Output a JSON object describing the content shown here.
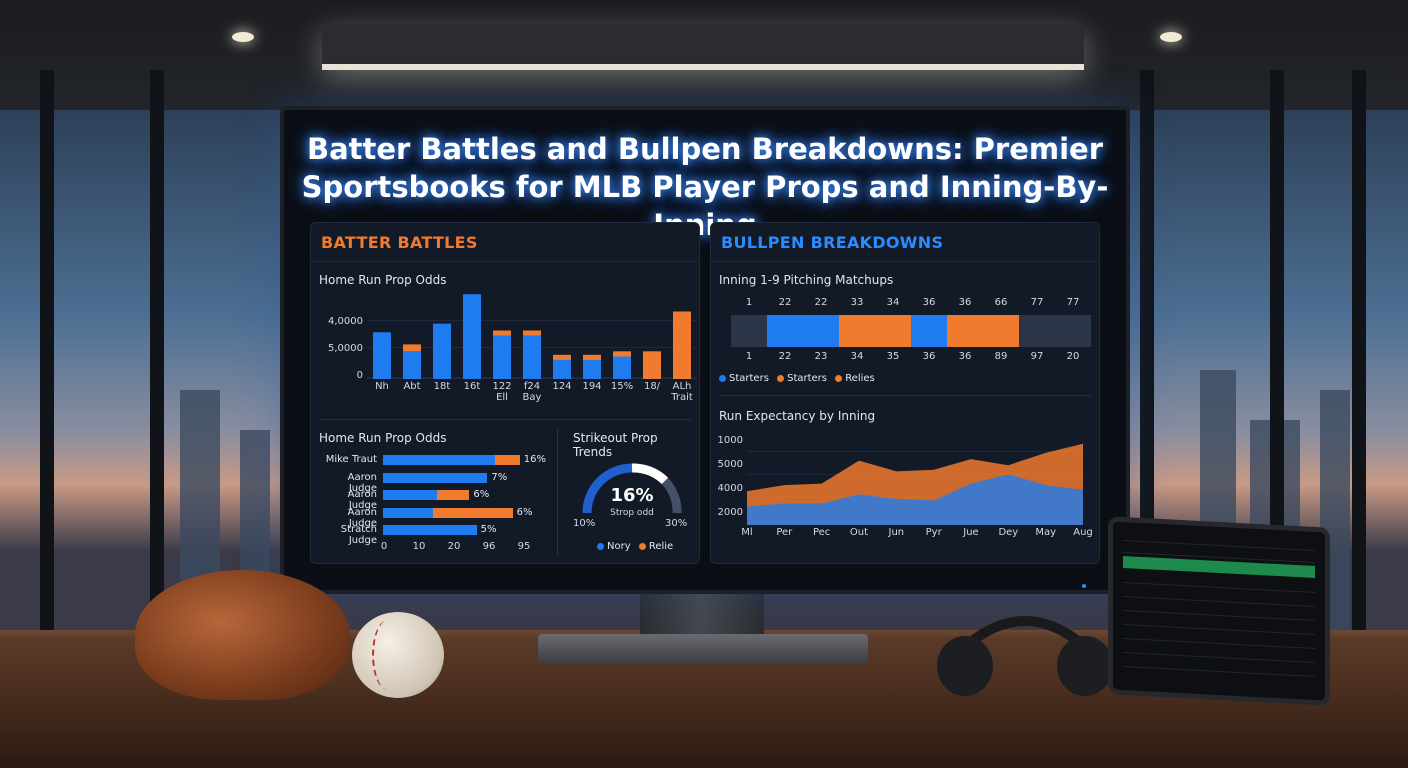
{
  "title": {
    "line1": "Batter Battles and Bullpen Breakdowns: Premier",
    "line2": "Sportsbooks for MLB Player Props and Inning-By-Inning"
  },
  "left_panel": {
    "heading": "BATTER BATTLES",
    "heading_color": "#f07a2e",
    "chart1_title": "Home Run Prop Odds",
    "chart2_title": "Home Run Prop Odds",
    "chart3_title": "Strikeout Prop Trends"
  },
  "right_panel": {
    "heading": "BULLPEN BREAKDOWNS",
    "heading_color": "#2b8cff",
    "chart1_title": "Inning 1-9 Pitching Matchups",
    "chart2_title": "Run Expectancy by Inning"
  },
  "chart_data": [
    {
      "type": "bar",
      "title": "Home Run Prop Odds",
      "y_tick_labels": [
        "4,0000",
        "5,0000",
        "0"
      ],
      "categories": [
        "Nh",
        "Abt",
        "18t",
        "16t",
        "122 Ell",
        "f24 Bay",
        "124",
        "194",
        "15%",
        "18/",
        "ALh Trait"
      ],
      "series": [
        {
          "color": "#1f7cf0",
          "values": [
            2.7,
            1.6,
            3.2,
            4.9,
            2.5,
            2.5,
            1.1,
            1.1,
            1.3,
            0,
            0
          ]
        },
        {
          "color": "#f07a2e",
          "values": [
            0,
            0.4,
            0,
            0,
            0.3,
            0.3,
            0.3,
            0.3,
            0.3,
            1.6,
            3.9
          ]
        }
      ]
    },
    {
      "type": "bar",
      "orientation": "horizontal",
      "title": "Home Run Prop Odds",
      "categories": [
        "Mike Traut",
        "Aaron Judge",
        "Aaron Judge",
        "Aaron Judge",
        "Stratch Judge"
      ],
      "value_labels": [
        "16%",
        "7%",
        "6%",
        "6%",
        "5%"
      ],
      "x_tick_labels": [
        "0",
        "10",
        "20",
        "96",
        "95"
      ],
      "series": [
        {
          "color": "#1f7cf0",
          "values": [
            31,
            29,
            15,
            14,
            26
          ]
        },
        {
          "color": "#f07a2e",
          "values": [
            7,
            0,
            9,
            22,
            0
          ]
        }
      ]
    },
    {
      "type": "gauge",
      "title": "Strikeout Prop Trends",
      "center_value": "16%",
      "center_label": "Strop odd",
      "min_label": "10%",
      "max_label": "30%",
      "legend": [
        {
          "label": "Nory",
          "color": "#1f7cf0"
        },
        {
          "label": "Relie",
          "color": "#f07a2e"
        }
      ]
    },
    {
      "type": "heatmap",
      "title": "Inning 1-9 Pitching Matchups",
      "top_labels": [
        "1",
        "22",
        "22",
        "33",
        "34",
        "36",
        "36",
        "66",
        "77",
        "77"
      ],
      "bottom_labels": [
        "1",
        "22",
        "23",
        "34",
        "35",
        "36",
        "36",
        "89",
        "97",
        "20"
      ],
      "cells": [
        "gray",
        "blue",
        "blue",
        "orange",
        "orange",
        "blue",
        "orange",
        "orange",
        "gray",
        "gray"
      ],
      "legend": [
        {
          "label": "Starters",
          "color": "#1f7cf0"
        },
        {
          "label": "Starters",
          "color": "#f07a2e"
        },
        {
          "label": "Relies",
          "color": "#f07a2e"
        }
      ]
    },
    {
      "type": "area",
      "title": "Run Expectancy by Inning",
      "y_tick_labels": [
        "1000",
        "5000",
        "4000",
        "2000"
      ],
      "x": [
        "Ml",
        "Per",
        "Pec",
        "Out",
        "Jun",
        "Pyr",
        "Jue",
        "Dey",
        "May",
        "Aug"
      ],
      "series": [
        {
          "color": "#f07a2e",
          "values": [
            2.2,
            2.6,
            2.7,
            4.2,
            3.5,
            3.6,
            4.3,
            3.9,
            4.7,
            5.3
          ]
        },
        {
          "color": "#1f7cf0",
          "values": [
            1.2,
            1.4,
            1.4,
            2.0,
            1.7,
            1.6,
            2.7,
            3.3,
            2.6,
            2.3
          ]
        }
      ]
    }
  ]
}
